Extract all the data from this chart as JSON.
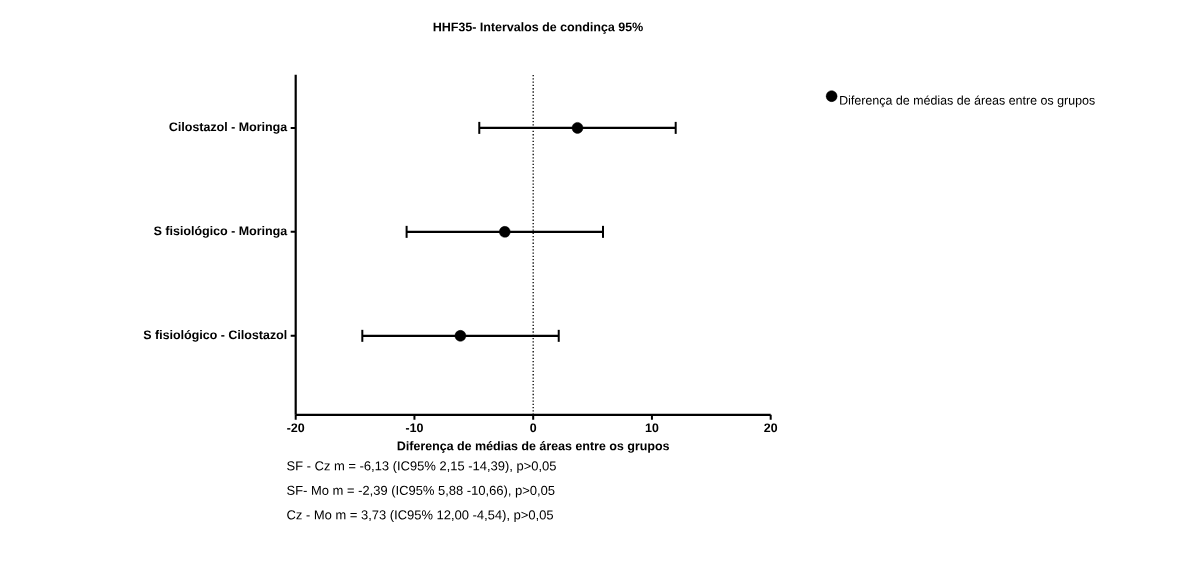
{
  "chart_data": {
    "type": "scatter",
    "orientation": "horizontal",
    "title": "HHF35- Intervalos de condinça 95%",
    "xlabel": "Diferença de médias de áreas entre os grupos",
    "categories": [
      "Cilostazol  - Moringa",
      "S fisiológico - Moringa",
      "S fisiológico - Cilostazol"
    ],
    "series": [
      {
        "name": "Diferença de médias de áreas entre os grupos",
        "color": "#000000",
        "values": [
          3.73,
          -2.39,
          -6.13
        ],
        "errors": [
          [
            -4.54,
            12.0
          ],
          [
            -10.66,
            5.88
          ],
          [
            -14.39,
            2.15
          ]
        ]
      }
    ],
    "xlim": [
      -20,
      20
    ],
    "xticks": [
      -20,
      -10,
      0,
      10,
      20
    ],
    "marker": "circle",
    "grid": false,
    "legend": "top right",
    "ref_lines": [
      {
        "axis": "x",
        "value": 0,
        "line_style": "dotted"
      }
    ],
    "annotations": [
      "SF - Cz     m = -6,13 (IC95% 2,15 -14,39), p>0,05",
      "SF- Mo     m = -2,39 (IC95% 5,88 -10,66), p>0,05",
      "Cz - Mo    m = 3,73  (IC95% 12,00 -4,54), p>0,05"
    ]
  }
}
